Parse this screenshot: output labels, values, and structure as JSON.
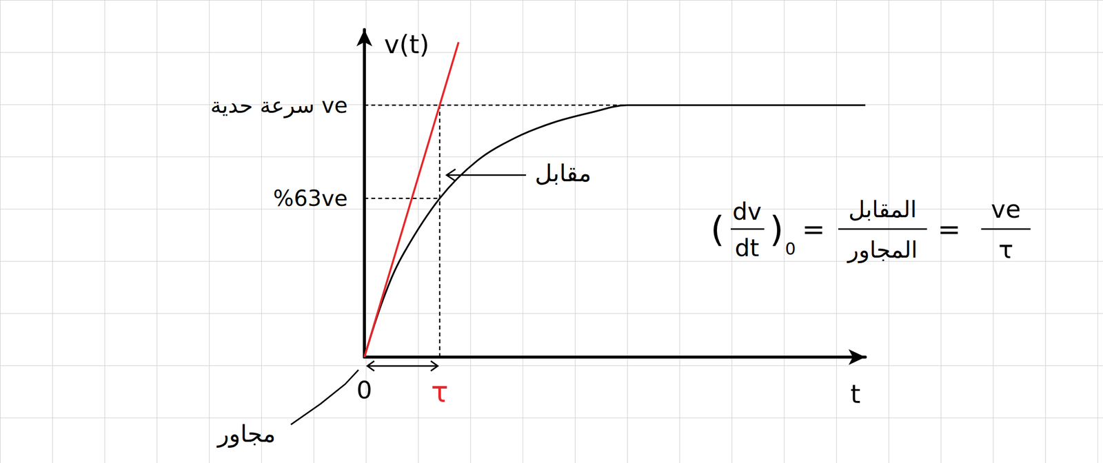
{
  "chart_data": {
    "type": "line",
    "x_label": "t",
    "y_label": "v(t)",
    "xlim": [
      0,
      6.65
    ],
    "ylim": [
      0,
      1.3
    ],
    "xticks": [
      0,
      {
        "value": 1,
        "label": "τ"
      }
    ],
    "yticks": [
      {
        "value": 0.63,
        "label": "%63ve"
      },
      {
        "value": 1,
        "label": "سرعة حدية ve"
      }
    ],
    "series": [
      {
        "type": "line",
        "color": "#000000",
        "line_style": "solid",
        "x": [
          0,
          0.25,
          0.5,
          1,
          1.5,
          2,
          2.5,
          3,
          3.5,
          4,
          5,
          6,
          6.65
        ],
        "values": [
          0,
          0.23,
          0.4,
          0.63,
          0.78,
          0.87,
          0.93,
          0.97,
          1,
          1,
          1,
          1,
          1
        ]
      },
      {
        "type": "line",
        "color": "#e8262a",
        "line_style": "solid",
        "x": [
          0,
          1.25
        ],
        "values": [
          0,
          1.25
        ]
      }
    ],
    "annotations": {
      "opposite_label": "مقابل",
      "adjacent_label": "مجاور",
      "formula": {
        "open": "(",
        "derivative_num": "dv",
        "derivative_den": "dt",
        "close": ")",
        "at": "0",
        "equals": "=",
        "middle_num": "المقابل",
        "middle_den": "المجاور",
        "right_num": "ve",
        "right_den": "τ"
      }
    }
  }
}
